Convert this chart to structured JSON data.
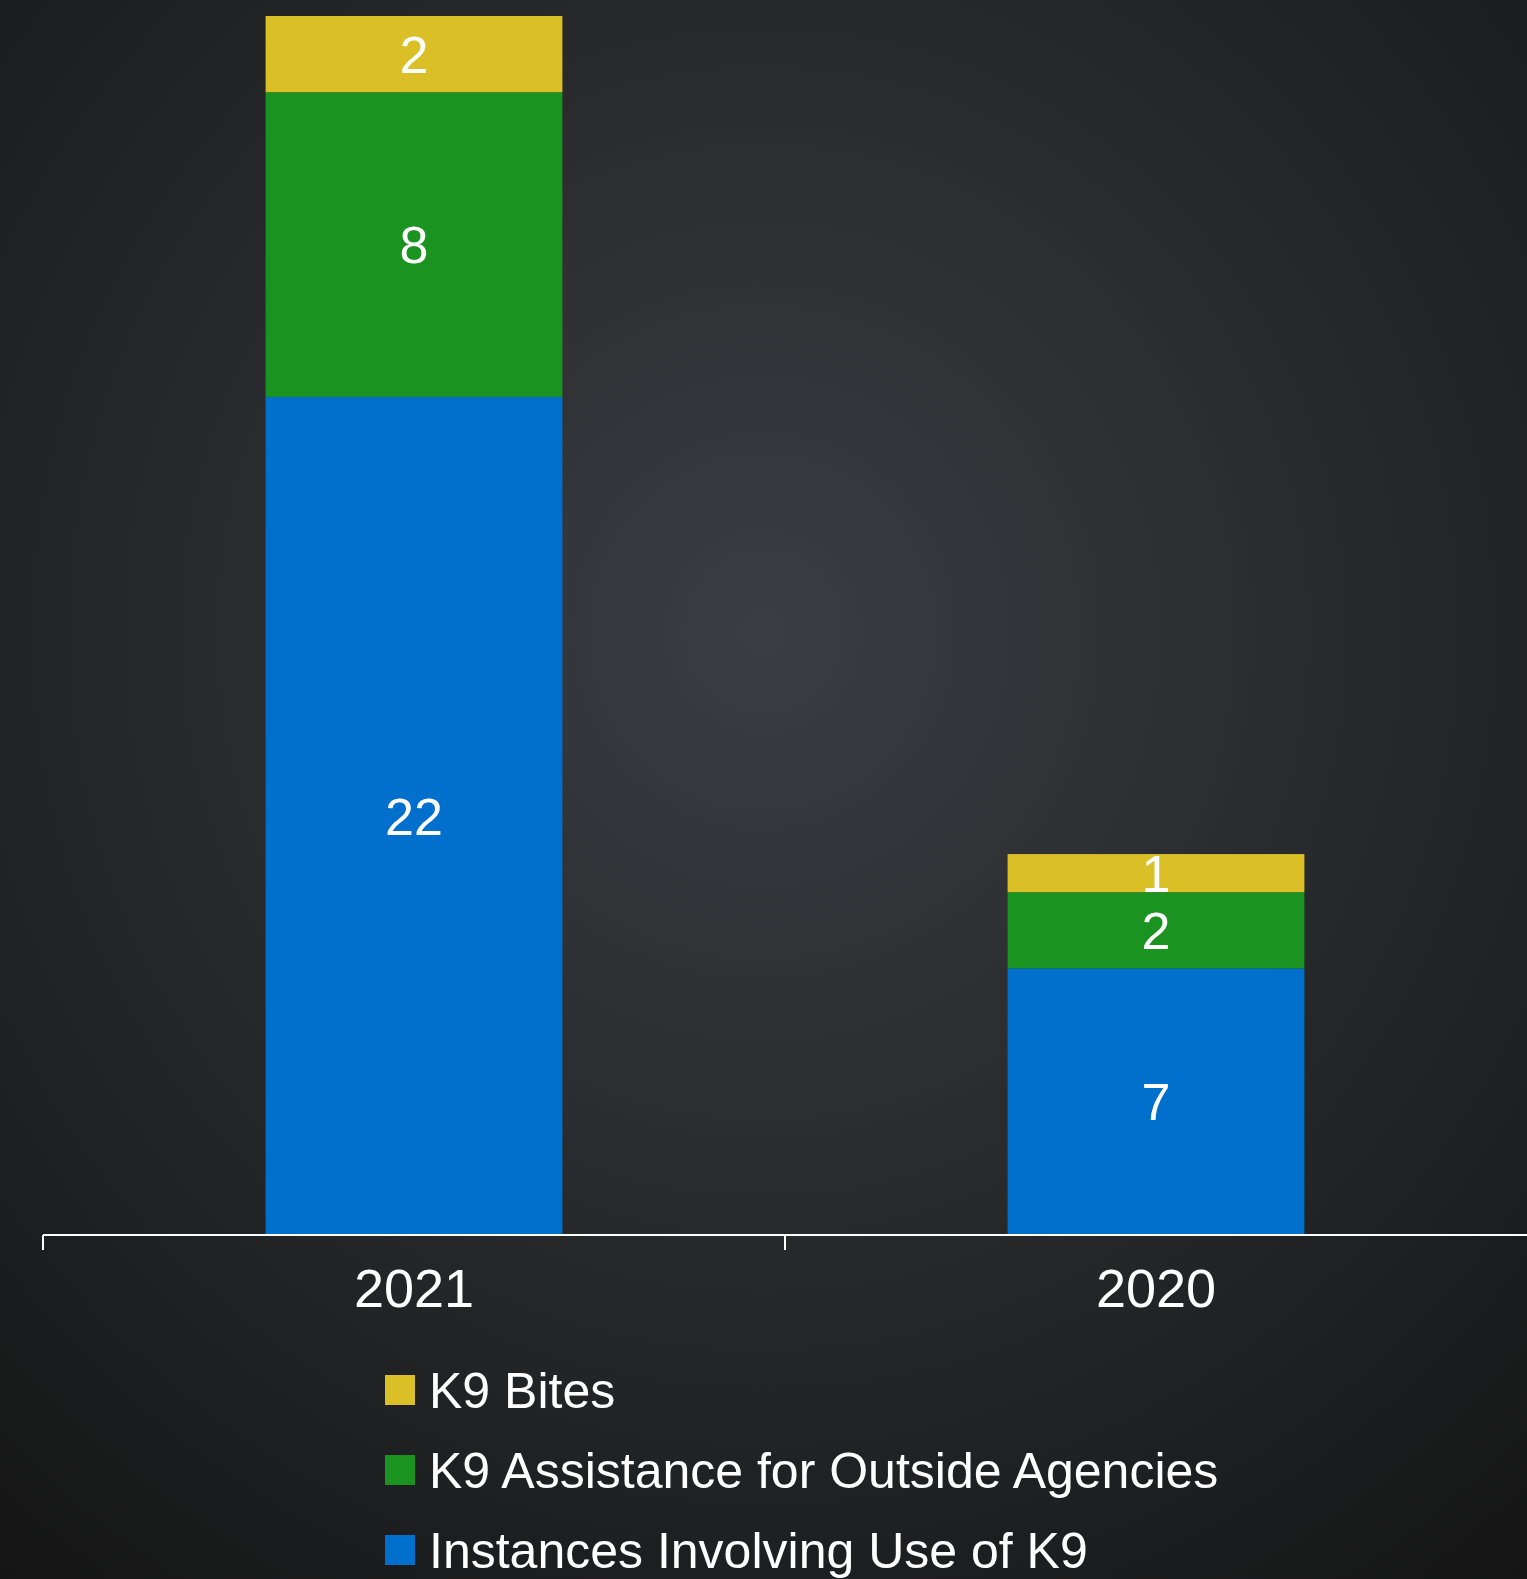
{
  "chart_data": {
    "type": "bar",
    "stacked": true,
    "data_labels": true,
    "legend": "bottom",
    "categories": [
      "2021",
      "2020"
    ],
    "series": [
      {
        "name": "Instances Involving Use of K9",
        "color": "#0070cc",
        "values": [
          22,
          7
        ]
      },
      {
        "name": "K9 Assistance for Outside Agencies",
        "color": "#1b9320",
        "values": [
          8,
          2
        ]
      },
      {
        "name": "K9 Bites",
        "color": "#dbbf26",
        "values": [
          2,
          1
        ]
      }
    ]
  }
}
